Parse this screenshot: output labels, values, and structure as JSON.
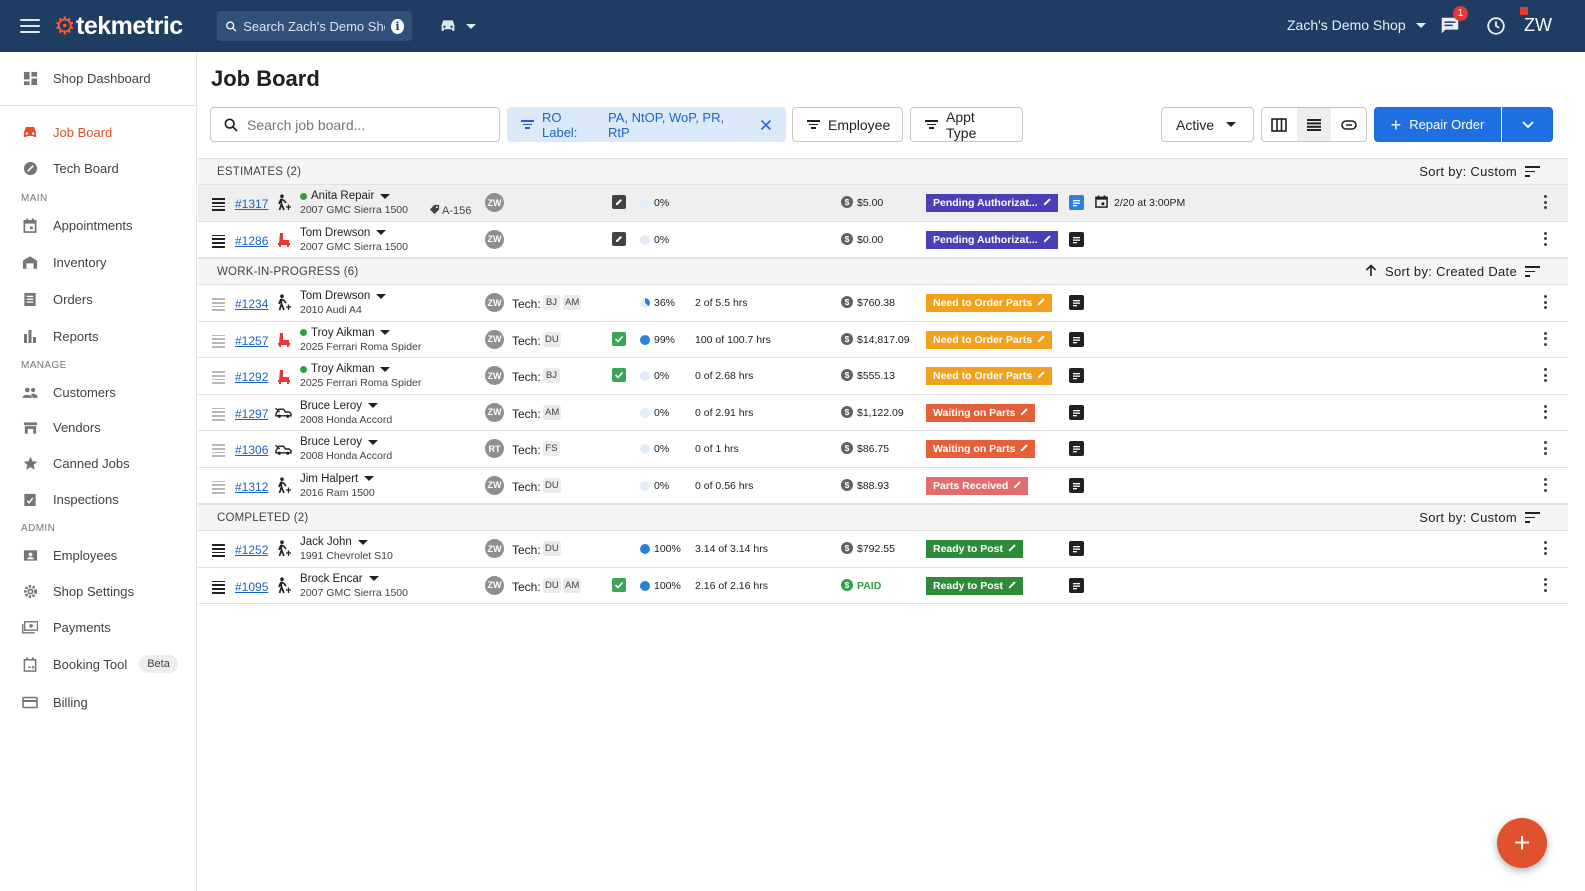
{
  "header": {
    "logo": "tekmetric",
    "search_placeholder": "Search Zach's Demo Shop",
    "shop_name": "Zach's Demo Shop",
    "notification_count": "1",
    "user_initials": "ZW"
  },
  "sidebar": {
    "top_item": "Shop Dashboard",
    "items_primary": [
      "Job Board",
      "Tech Board"
    ],
    "section_main": "MAIN",
    "items_main": [
      "Appointments",
      "Inventory",
      "Orders",
      "Reports"
    ],
    "section_manage": "MANAGE",
    "items_manage": [
      "Customers",
      "Vendors",
      "Canned Jobs",
      "Inspections"
    ],
    "section_admin": "ADMIN",
    "items_admin": [
      "Employees",
      "Shop Settings",
      "Payments",
      "Booking Tool",
      "Billing"
    ],
    "beta_label": "Beta"
  },
  "page": {
    "title": "Job Board",
    "search_placeholder": "Search job board...",
    "ro_label_filter": "RO Label:",
    "ro_label_values": "PA, NtOP, WoP, PR, RtP",
    "employee_filter": "Employee",
    "appt_type_filter": "Appt Type",
    "active_select": "Active",
    "repair_order_button": "Repair Order"
  },
  "colors": {
    "brand_navy": "#1f3c63",
    "accent_orange": "#e0522d",
    "primary_blue": "#1e6fe0",
    "pending_auth": "#4a3fb5",
    "need_order_parts": "#f2a11c",
    "waiting_on_parts": "#e5603a",
    "parts_received": "#e26d6d",
    "ready_to_post": "#2e8b3a"
  },
  "sections": [
    {
      "title": "ESTIMATES (2)",
      "sort": "Sort by: Custom",
      "sort_arrow": false,
      "rows": [
        {
          "ro": "#1317",
          "customer": "Anita Repair",
          "dot": true,
          "vehicle": "2007 GMC Sierra 1500",
          "tag": "A-156",
          "sa": "ZW",
          "tech_label": "",
          "techs": [],
          "inspection": "dark",
          "progress": 0,
          "progress_text": "0%",
          "hours": "",
          "money": "$5.00",
          "money_paid": false,
          "status": "Pending Authorizat...",
          "status_color": "#4a3fb5",
          "note": "blue",
          "appointment": "2/20 at 3:00PM",
          "highlight": true,
          "drag": "dark",
          "cust_icon": "walk"
        },
        {
          "ro": "#1286",
          "customer": "Tom Drewson",
          "dot": false,
          "vehicle": "2007 GMC Sierra 1500",
          "tag": "",
          "sa": "ZW",
          "tech_label": "",
          "techs": [],
          "inspection": "dark",
          "progress": 0,
          "progress_text": "0%",
          "hours": "",
          "money": "$0.00",
          "money_paid": false,
          "status": "Pending Authorizat...",
          "status_color": "#4a3fb5",
          "note": "dark",
          "appointment": "",
          "highlight": false,
          "drag": "dark",
          "cust_icon": "seat"
        }
      ]
    },
    {
      "title": "WORK-IN-PROGRESS (6)",
      "sort": "Sort by: Created Date",
      "sort_arrow": true,
      "rows": [
        {
          "ro": "#1234",
          "customer": "Tom Drewson",
          "dot": false,
          "vehicle": "2010 Audi A4",
          "tag": "",
          "sa": "ZW",
          "tech_label": "Tech:",
          "techs": [
            "BJ",
            "AM"
          ],
          "inspection": "",
          "progress": 36,
          "progress_text": "36%",
          "hours": "2 of 5.5 hrs",
          "money": "$760.38",
          "money_paid": false,
          "status": "Need to Order Parts",
          "status_color": "#f2a11c",
          "note": "dark",
          "appointment": "",
          "highlight": false,
          "drag": "light",
          "cust_icon": "walk"
        },
        {
          "ro": "#1257",
          "customer": "Troy Aikman",
          "dot": true,
          "vehicle": "2025 Ferrari Roma Spider",
          "tag": "",
          "sa": "ZW",
          "tech_label": "Tech:",
          "techs": [
            "DU"
          ],
          "inspection": "green",
          "progress": 99,
          "progress_text": "99%",
          "hours": "100 of 100.7 hrs",
          "money": "$14,817.09",
          "money_paid": false,
          "status": "Need to Order Parts",
          "status_color": "#f2a11c",
          "note": "dark",
          "appointment": "",
          "highlight": false,
          "drag": "light",
          "cust_icon": "seat"
        },
        {
          "ro": "#1292",
          "customer": "Troy Aikman",
          "dot": true,
          "vehicle": "2025 Ferrari Roma Spider",
          "tag": "",
          "sa": "ZW",
          "tech_label": "Tech:",
          "techs": [
            "BJ"
          ],
          "inspection": "green",
          "progress": 0,
          "progress_text": "0%",
          "hours": "0 of 2.68 hrs",
          "money": "$555.13",
          "money_paid": false,
          "status": "Need to Order Parts",
          "status_color": "#f2a11c",
          "note": "dark",
          "appointment": "",
          "highlight": false,
          "drag": "light",
          "cust_icon": "seat"
        },
        {
          "ro": "#1297",
          "customer": "Bruce Leroy",
          "dot": false,
          "vehicle": "2008 Honda Accord",
          "tag": "",
          "sa": "ZW",
          "tech_label": "Tech:",
          "techs": [
            "AM"
          ],
          "inspection": "",
          "progress": 0,
          "progress_text": "0%",
          "hours": "0 of 2.91 hrs",
          "money": "$1,122.09",
          "money_paid": false,
          "status": "Waiting on Parts",
          "status_color": "#e5603a",
          "note": "dark",
          "appointment": "",
          "highlight": false,
          "drag": "light",
          "cust_icon": "tow"
        },
        {
          "ro": "#1306",
          "customer": "Bruce Leroy",
          "dot": false,
          "vehicle": "2008 Honda Accord",
          "tag": "",
          "sa": "RT",
          "tech_label": "Tech:",
          "techs": [
            "FS"
          ],
          "inspection": "",
          "progress": 0,
          "progress_text": "0%",
          "hours": "0 of 1 hrs",
          "money": "$86.75",
          "money_paid": false,
          "status": "Waiting on Parts",
          "status_color": "#e5603a",
          "note": "dark",
          "appointment": "",
          "highlight": false,
          "drag": "light",
          "cust_icon": "tow"
        },
        {
          "ro": "#1312",
          "customer": "Jim Halpert",
          "dot": false,
          "vehicle": "2016 Ram 1500",
          "tag": "",
          "sa": "ZW",
          "tech_label": "Tech:",
          "techs": [
            "DU"
          ],
          "inspection": "",
          "progress": 0,
          "progress_text": "0%",
          "hours": "0 of 0.56 hrs",
          "money": "$88.93",
          "money_paid": false,
          "status": "Parts Received",
          "status_color": "#e26d6d",
          "note": "dark",
          "appointment": "",
          "highlight": false,
          "drag": "light",
          "cust_icon": "walk"
        }
      ]
    },
    {
      "title": "COMPLETED (2)",
      "sort": "Sort by: Custom",
      "sort_arrow": false,
      "rows": [
        {
          "ro": "#1252",
          "customer": "Jack John",
          "dot": false,
          "vehicle": "1991 Chevrolet S10",
          "tag": "",
          "sa": "ZW",
          "tech_label": "Tech:",
          "techs": [
            "DU"
          ],
          "inspection": "",
          "progress": 100,
          "progress_text": "100%",
          "hours": "3.14 of 3.14 hrs",
          "money": "$792.55",
          "money_paid": false,
          "status": "Ready to Post",
          "status_color": "#2e8b3a",
          "note": "dark",
          "appointment": "",
          "highlight": false,
          "drag": "dark",
          "cust_icon": "walk"
        },
        {
          "ro": "#1095",
          "customer": "Brock Encar",
          "dot": false,
          "vehicle": "2007 GMC Sierra 1500",
          "tag": "",
          "sa": "ZW",
          "tech_label": "Tech:",
          "techs": [
            "DU",
            "AM"
          ],
          "inspection": "green",
          "progress": 100,
          "progress_text": "100%",
          "hours": "2.16 of 2.16 hrs",
          "money": "PAID",
          "money_paid": true,
          "status": "Ready to Post",
          "status_color": "#2e8b3a",
          "note": "dark",
          "appointment": "",
          "highlight": false,
          "drag": "dark",
          "cust_icon": "walk"
        }
      ]
    }
  ]
}
